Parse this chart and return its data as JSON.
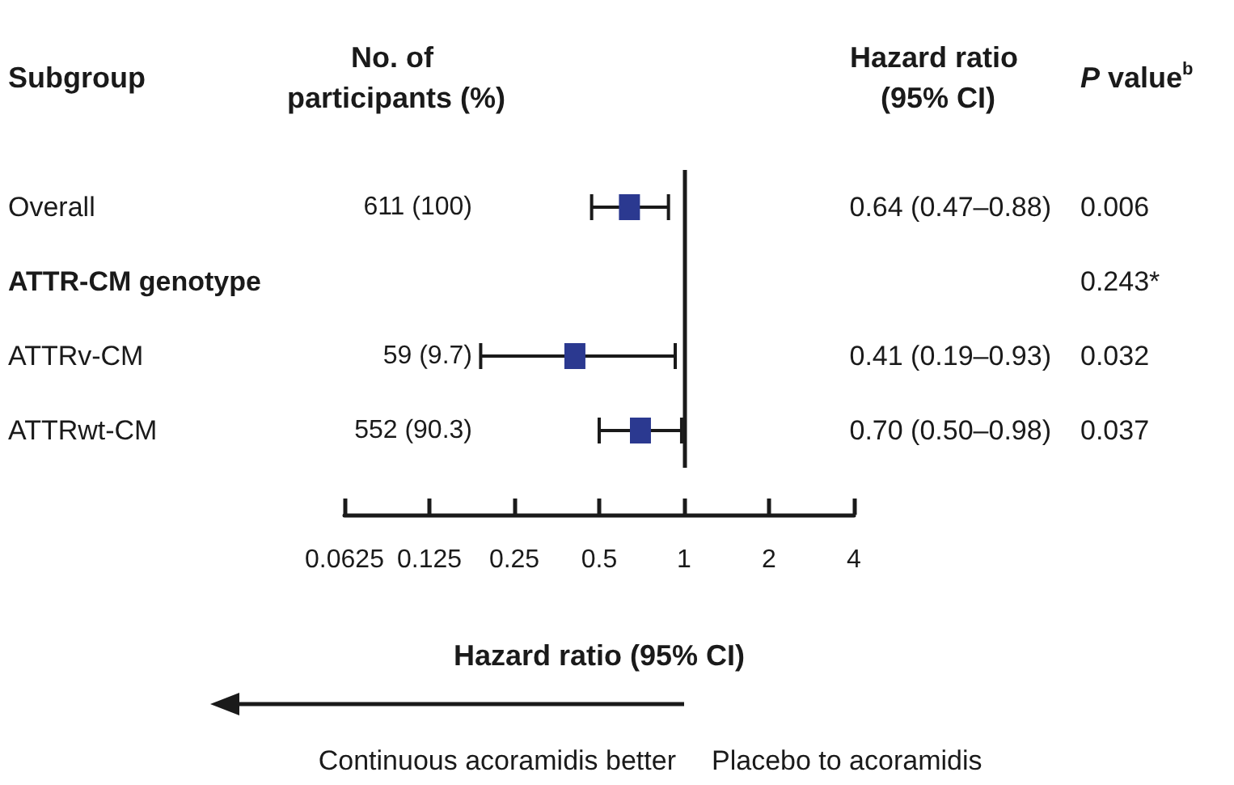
{
  "chart_data": {
    "type": "scatter",
    "orientation": "horizontal",
    "xlabel": "Hazard ratio (95% CI)",
    "categories": [
      "Overall",
      "ATTR-CM genotype",
      "ATTRv-CM",
      "ATTRwt-CM"
    ],
    "values": [
      0.64,
      null,
      0.41,
      0.7
    ],
    "errors": [
      [
        0.47,
        0.88
      ],
      null,
      [
        0.19,
        0.93
      ],
      [
        0.5,
        0.98
      ]
    ],
    "value_labels": [
      "0.64 (0.47–0.88)",
      null,
      "0.41 (0.19–0.93)",
      "0.70 (0.50–0.98)"
    ],
    "color": "#2b3990",
    "marker": "square",
    "log": "x",
    "xlim": [
      0.0625,
      4
    ],
    "xticks": [
      0.0625,
      0.125,
      0.25,
      0.5,
      1,
      2,
      4
    ],
    "ref_lines": [
      {
        "axis": "x",
        "value": 1
      }
    ],
    "annotations": [
      "Subgroup",
      "No. of participants (%)",
      "Hazard ratio (95% CI)",
      "P value$^{b}$",
      "Continuous acoramidis better",
      "Placebo to acoramidis",
      "611 (100)",
      "0.006",
      "0.243*",
      "59 (9.7)",
      "0.032",
      "552 (90.3)",
      "0.037"
    ]
  }
}
